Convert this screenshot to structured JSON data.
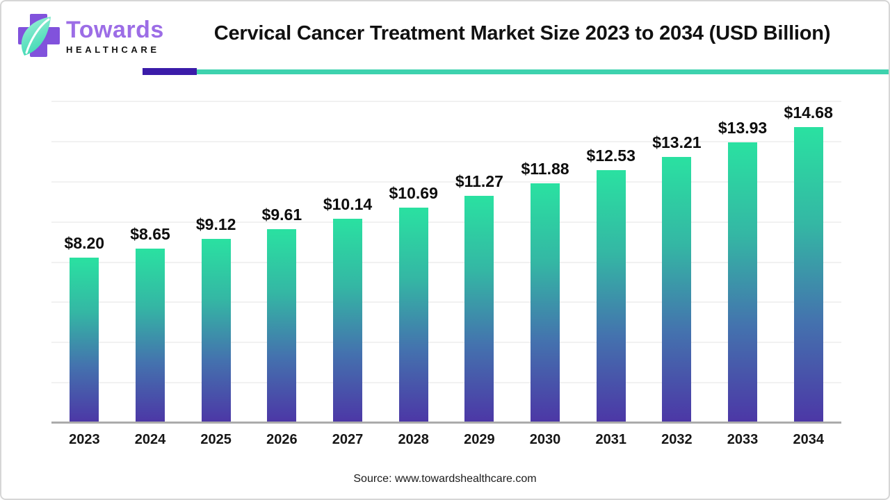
{
  "page": {
    "background": "#ffffff",
    "border_color": "#d6d6d6"
  },
  "header": {
    "logo": {
      "brand": "Towards",
      "subbrand": "HEALTHCARE",
      "cross_color": "#8152dc",
      "leaf_color_light": "#a5f2da",
      "leaf_color_dark": "#3fd9b4",
      "brand_color": "#9c6de6",
      "subbrand_color": "#141414"
    },
    "title": "Cervical Cancer Treatment Market Size 2023 to 2034 (USD Billion)",
    "divider": {
      "purple": "#3b1ca9",
      "teal": "#3ed2ae"
    }
  },
  "chart_data": {
    "type": "bar",
    "title": "Cervical Cancer Treatment Market Size 2023 to 2034 (USD Billion)",
    "categories": [
      "2023",
      "2024",
      "2025",
      "2026",
      "2027",
      "2028",
      "2029",
      "2030",
      "2031",
      "2032",
      "2033",
      "2034"
    ],
    "values": [
      8.2,
      8.65,
      9.12,
      9.61,
      10.14,
      10.69,
      11.27,
      11.88,
      12.53,
      13.21,
      13.93,
      14.68
    ],
    "value_labels": [
      "$8.20",
      "$8.65",
      "$9.12",
      "$9.61",
      "$10.14",
      "$10.69",
      "$11.27",
      "$11.88",
      "$12.53",
      "$13.21",
      "$13.93",
      "$14.68"
    ],
    "unit": "USD Billion",
    "xlabel": "",
    "ylabel": "",
    "ylim": [
      0,
      16
    ],
    "grid": true,
    "grid_step": 2,
    "gridline_color": "#f1f1f1",
    "baseline_color": "#ababab",
    "legend": "none",
    "bar_gradient": [
      "#2ae1a1",
      "#34b7a4",
      "#4472ae",
      "#4c37a6"
    ]
  },
  "footer": {
    "source": "Source: www.towardshealthcare.com"
  }
}
